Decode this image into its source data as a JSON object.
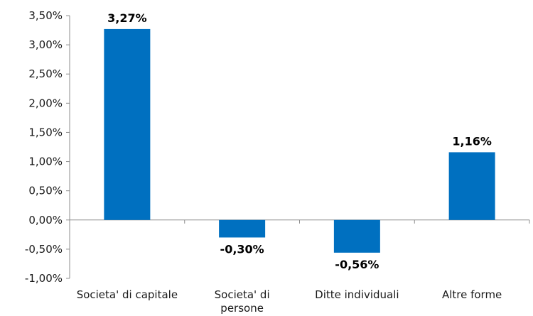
{
  "chart_data": {
    "type": "bar",
    "categories": [
      [
        "Societa' di capitale"
      ],
      [
        "Societa' di",
        "persone"
      ],
      [
        "Ditte individuali"
      ],
      [
        "Altre forme"
      ]
    ],
    "values": [
      3.27,
      -0.3,
      -0.56,
      1.16
    ],
    "value_labels": [
      "3,27%",
      "-0,30%",
      "-0,56%",
      "1,16%"
    ],
    "yticks": [
      {
        "value": 3.5,
        "label": "3,50%"
      },
      {
        "value": 3.0,
        "label": "3,00%"
      },
      {
        "value": 2.5,
        "label": "2,50%"
      },
      {
        "value": 2.0,
        "label": "2,00%"
      },
      {
        "value": 1.5,
        "label": "1,50%"
      },
      {
        "value": 1.0,
        "label": "1,00%"
      },
      {
        "value": 0.5,
        "label": "0,50%"
      },
      {
        "value": 0.0,
        "label": "0,00%"
      },
      {
        "value": -0.5,
        "label": "-0,50%"
      },
      {
        "value": -1.0,
        "label": "-1,00%"
      }
    ],
    "ylim": [
      -1.0,
      3.5
    ],
    "grid": false,
    "bar_color": "#0070c0",
    "axis_color": "#8c8c8c",
    "title": "",
    "xlabel": "",
    "ylabel": ""
  }
}
